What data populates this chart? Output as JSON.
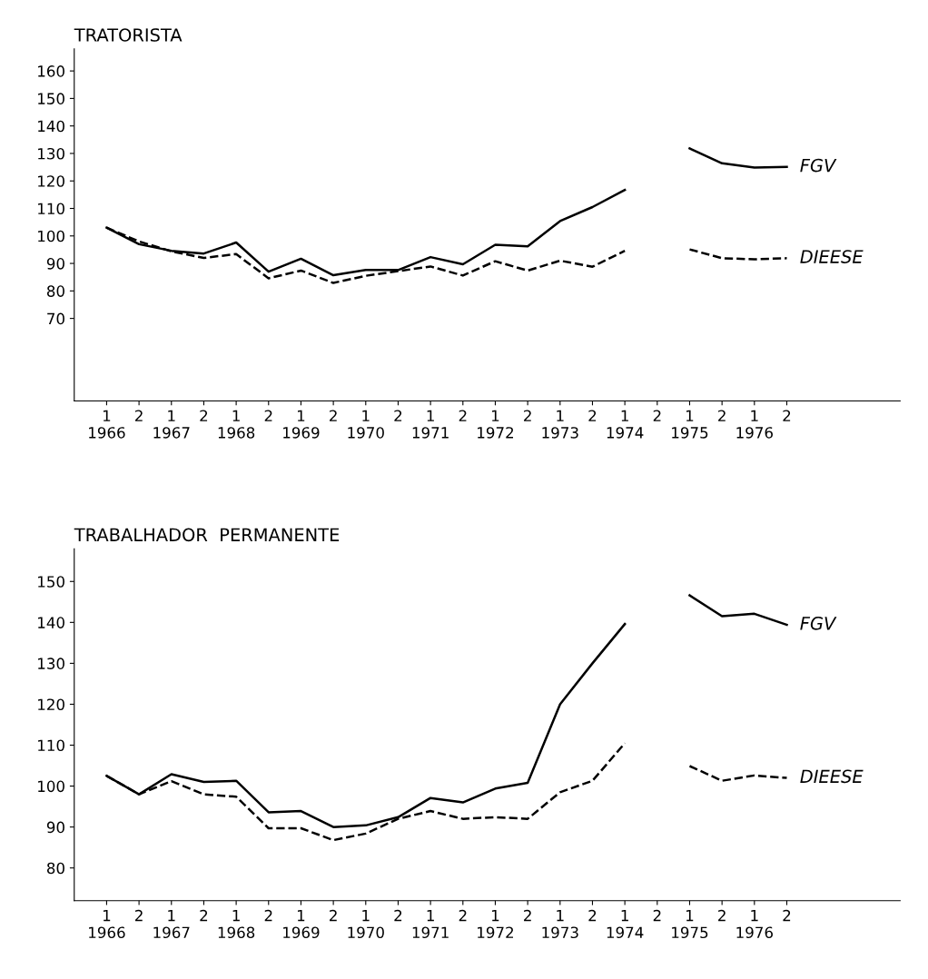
{
  "chart_data": [
    {
      "type": "line",
      "title": "TRATORISTA",
      "categories": [
        "1\n1966",
        "2",
        "1\n1967",
        "2",
        "1\n1968",
        "2",
        "1\n1969",
        "2",
        "1\n1970",
        "2",
        "1\n1971",
        "2",
        "1\n1972",
        "2",
        "1\n1973",
        "2",
        "1\n1974",
        "2",
        "1\n1975",
        "2",
        "1\n1976",
        "2"
      ],
      "series": [
        {
          "name": "FGV",
          "color": "#000000",
          "line_style": "solid",
          "values": [
            103,
            97,
            94.6,
            93.6,
            97.6,
            87,
            91.7,
            85.7,
            87.6,
            87.6,
            92.3,
            89.7,
            96.8,
            96.2,
            105.4,
            110.5,
            116.7,
            null,
            131.8,
            126.4,
            124.9,
            125.1
          ]
        },
        {
          "name": "DIEESE",
          "color": "#000000",
          "line_style": "dashed",
          "values": [
            103,
            98,
            94.4,
            92,
            93.4,
            84.6,
            87.4,
            82.9,
            85.5,
            87.2,
            88.9,
            85.6,
            90.8,
            87.4,
            91,
            88.8,
            94.6,
            null,
            95.1,
            91.9,
            91.5,
            91.9
          ]
        }
      ],
      "ylim": [
        40,
        168
      ],
      "yticks": [
        70,
        80,
        90,
        100,
        110,
        120,
        130,
        140,
        150,
        160
      ],
      "grid": false,
      "legend": false
    },
    {
      "type": "line",
      "title": "TRABALHADOR  PERMANENTE",
      "categories": [
        "1\n1966",
        "2",
        "1\n1967",
        "2",
        "1\n1968",
        "2",
        "1\n1969",
        "2",
        "1\n1970",
        "2",
        "1\n1971",
        "2",
        "1\n1972",
        "2",
        "1\n1973",
        "2",
        "1\n1974",
        "2",
        "1\n1975",
        "2",
        "1\n1976",
        "2"
      ],
      "series": [
        {
          "name": "FGV",
          "color": "#000000",
          "line_style": "solid",
          "values": [
            102.5,
            98,
            102.9,
            101,
            101.3,
            93.6,
            93.9,
            90,
            90.4,
            92.4,
            97.1,
            96,
            99.4,
            100.8,
            120,
            130,
            139.6,
            null,
            146.6,
            141.5,
            142.1,
            139.4
          ]
        },
        {
          "name": "DIEESE",
          "color": "#000000",
          "line_style": "dashed",
          "values": [
            102.5,
            98,
            101.2,
            98,
            97.4,
            89.7,
            89.7,
            86.8,
            88.4,
            92,
            93.9,
            92,
            92.4,
            92,
            98.5,
            101.3,
            110.5,
            null,
            104.9,
            101.3,
            102.6,
            102
          ]
        }
      ],
      "ylim": [
        72,
        158
      ],
      "yticks": [
        80,
        90,
        100,
        110,
        120,
        130,
        140,
        150
      ],
      "grid": false,
      "legend": false
    }
  ]
}
